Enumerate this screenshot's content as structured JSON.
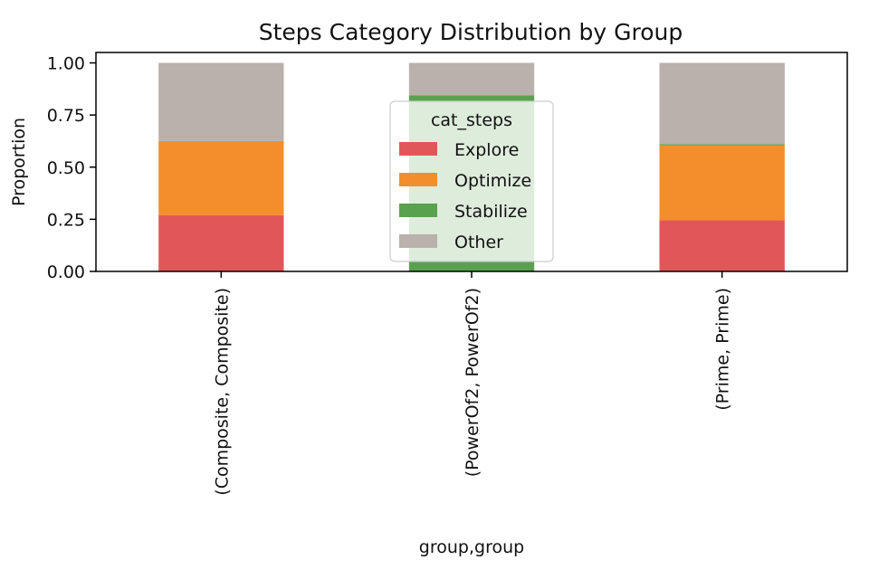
{
  "chart_data": {
    "type": "bar",
    "stacked": true,
    "title": "Steps Category Distribution by Group",
    "xlabel": "group,group",
    "ylabel": "Proportion",
    "ylim": [
      0,
      1.05
    ],
    "yticks": [
      "0.00",
      "0.25",
      "0.50",
      "0.75",
      "1.00"
    ],
    "categories": [
      "(Composite, Composite)",
      "(PowerOf2, PowerOf2)",
      "(Prime, Prime)"
    ],
    "legend": {
      "title": "cat_steps",
      "placement": "upper center"
    },
    "series": [
      {
        "name": "Explore",
        "color": "#e15759",
        "values": [
          0.27,
          0.0,
          0.245
        ]
      },
      {
        "name": "Optimize",
        "color": "#f28e2b",
        "values": [
          0.355,
          0.0,
          0.36
        ]
      },
      {
        "name": "Stabilize",
        "color": "#59a14f",
        "values": [
          0.0,
          0.845,
          0.005
        ]
      },
      {
        "name": "Other",
        "color": "#bab0ac",
        "values": [
          0.375,
          0.155,
          0.39
        ]
      }
    ]
  }
}
